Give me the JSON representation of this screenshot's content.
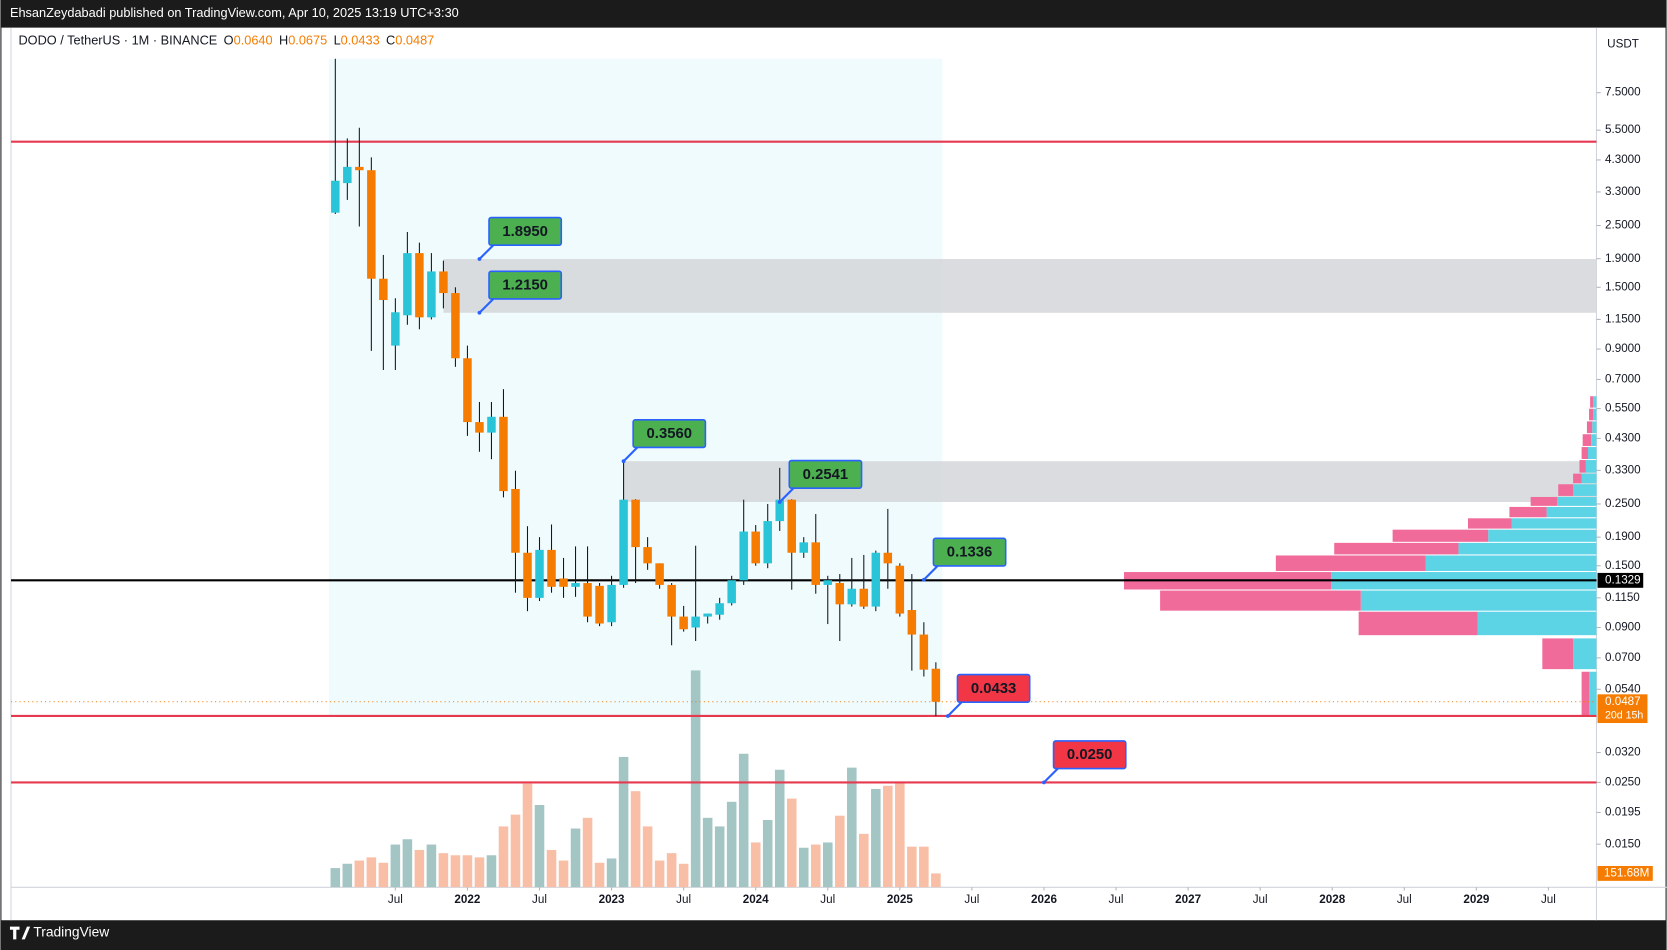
{
  "header": {
    "publish_note": "EhsanZeydabadi published on TradingView.com, Apr 10, 2025 13:19 UTC+3:30"
  },
  "footer": {
    "brand": "TradingView"
  },
  "chart_data": {
    "type": "candlestick",
    "symbol": "DODO / TetherUS · 1M · BINANCE",
    "ohlc_fields": [
      {
        "key": "O",
        "label": "0.0640"
      },
      {
        "key": "H",
        "label": "0.0675"
      },
      {
        "key": "L",
        "label": "0.0433"
      },
      {
        "key": "C",
        "label": "0.0487"
      }
    ],
    "currency": "USDT",
    "x": [
      "2021-02",
      "2021-03",
      "2021-04",
      "2021-05",
      "2021-06",
      "2021-07",
      "2021-08",
      "2021-09",
      "2021-10",
      "2021-11",
      "2021-12",
      "2022-01",
      "2022-02",
      "2022-03",
      "2022-04",
      "2022-05",
      "2022-06",
      "2022-07",
      "2022-08",
      "2022-09",
      "2022-10",
      "2022-11",
      "2022-12",
      "2023-01",
      "2023-02",
      "2023-03",
      "2023-04",
      "2023-05",
      "2023-06",
      "2023-07",
      "2023-08",
      "2023-09",
      "2023-10",
      "2023-11",
      "2023-12",
      "2024-01",
      "2024-02",
      "2024-03",
      "2024-04",
      "2024-05",
      "2024-06",
      "2024-07",
      "2024-08",
      "2024-09",
      "2024-10",
      "2024-11",
      "2024-12",
      "2025-01",
      "2025-02",
      "2025-03",
      "2025-04"
    ],
    "open": [
      2.78,
      3.55,
      4.06,
      3.95,
      1.61,
      0.926,
      1.19,
      1.99,
      1.17,
      1.71,
      1.43,
      0.834,
      0.492,
      0.451,
      0.514,
      0.283,
      0.167,
      0.115,
      0.171,
      0.135,
      0.126,
      0.13,
      0.127,
      0.094,
      0.128,
      0.259,
      0.175,
      0.153,
      0.128,
      0.0985,
      0.09,
      0.0985,
      0.1,
      0.11,
      0.133,
      0.199,
      0.153,
      0.217,
      0.259,
      0.167,
      0.182,
      0.128,
      0.13,
      0.109,
      0.124,
      0.107,
      0.167,
      0.15,
      0.104,
      0.0849,
      0.064
    ],
    "high": [
      9.93,
      5.14,
      5.61,
      4.39,
      1.96,
      1.37,
      2.37,
      2.17,
      1.99,
      1.87,
      1.5,
      0.926,
      0.581,
      0.581,
      0.646,
      0.329,
      0.208,
      0.19,
      0.211,
      0.16,
      0.176,
      0.176,
      0.13,
      0.138,
      0.356,
      0.26,
      0.19,
      0.153,
      0.13,
      0.1076,
      0.177,
      0.101,
      0.115,
      0.138,
      0.259,
      0.21,
      0.25,
      0.337,
      0.26,
      0.19,
      0.23,
      0.138,
      0.14,
      0.16,
      0.164,
      0.17,
      0.24,
      0.153,
      0.14,
      0.094,
      0.0675
    ],
    "low": [
      2.75,
      3.09,
      2.48,
      0.887,
      0.757,
      0.757,
      1.1,
      1.06,
      1.15,
      1.26,
      0.777,
      0.439,
      0.385,
      0.362,
      0.264,
      0.12,
      0.103,
      0.112,
      0.12,
      0.115,
      0.116,
      0.094,
      0.091,
      0.091,
      0.125,
      0.13,
      0.145,
      0.124,
      0.0777,
      0.087,
      0.0805,
      0.093,
      0.096,
      0.108,
      0.128,
      0.15,
      0.147,
      0.2,
      0.123,
      0.16,
      0.119,
      0.0926,
      0.0805,
      0.107,
      0.105,
      0.103,
      0.124,
      0.0985,
      0.063,
      0.06,
      0.0433
    ],
    "close": [
      3.62,
      4.06,
      3.95,
      1.61,
      1.35,
      1.22,
      1.99,
      1.17,
      1.71,
      1.43,
      0.834,
      0.492,
      0.451,
      0.514,
      0.278,
      0.167,
      0.115,
      0.171,
      0.126,
      0.126,
      0.13,
      0.0985,
      0.093,
      0.128,
      0.259,
      0.175,
      0.153,
      0.128,
      0.0985,
      0.0887,
      0.0985,
      0.101,
      0.11,
      0.133,
      0.199,
      0.153,
      0.217,
      0.259,
      0.167,
      0.182,
      0.128,
      0.133,
      0.109,
      0.124,
      0.107,
      0.167,
      0.153,
      0.101,
      0.0849,
      0.0635,
      0.0487
    ],
    "up_color": "#29c4d8",
    "down_color": "#f57c00",
    "volume": {
      "values": [
        210,
        257,
        292,
        327,
        268,
        467,
        525,
        408,
        467,
        373,
        350,
        350,
        327,
        350,
        665,
        794,
        1132,
        899,
        408,
        292,
        642,
        759,
        268,
        315,
        1424,
        1050,
        665,
        292,
        373,
        257,
        2369,
        759,
        665,
        934,
        1459,
        490,
        735,
        1284,
        969,
        432,
        467,
        490,
        782,
        1307,
        584,
        1074,
        1109,
        1144,
        444,
        444,
        151.68
      ],
      "last_label": "151.68M",
      "up_color": "#a3c6c5",
      "down_color": "#f8bea6"
    },
    "log_scale": true,
    "ylim": [
      0.0105,
      10.4
    ],
    "yticks": [
      {
        "value": 7.5,
        "label": "7.5000"
      },
      {
        "value": 5.5,
        "label": "5.5000"
      },
      {
        "value": 4.3,
        "label": "4.3000"
      },
      {
        "value": 3.3,
        "label": "3.3000"
      },
      {
        "value": 2.5,
        "label": "2.5000"
      },
      {
        "value": 1.9,
        "label": "1.9000"
      },
      {
        "value": 1.5,
        "label": "1.5000"
      },
      {
        "value": 1.15,
        "label": "1.1500"
      },
      {
        "value": 0.9,
        "label": "0.9000"
      },
      {
        "value": 0.7,
        "label": "0.7000"
      },
      {
        "value": 0.55,
        "label": "0.5500"
      },
      {
        "value": 0.43,
        "label": "0.4300"
      },
      {
        "value": 0.33,
        "label": "0.3300"
      },
      {
        "value": 0.25,
        "label": "0.2500"
      },
      {
        "value": 0.19,
        "label": "0.1900"
      },
      {
        "value": 0.15,
        "label": "0.1500"
      },
      {
        "value": 0.115,
        "label": "0.1150"
      },
      {
        "value": 0.09,
        "label": "0.0900"
      },
      {
        "value": 0.07,
        "label": "0.0700"
      },
      {
        "value": 0.054,
        "label": "0.0540"
      },
      {
        "value": 0.032,
        "label": "0.0320"
      },
      {
        "value": 0.025,
        "label": "0.0250"
      },
      {
        "value": 0.0195,
        "label": "0.0195"
      },
      {
        "value": 0.015,
        "label": "0.0150"
      }
    ],
    "xlim": [
      "2018-11",
      "2029-11"
    ],
    "xticks": [
      {
        "value": "2021-07",
        "label": "Jul"
      },
      {
        "value": "2022-01",
        "label": "2022"
      },
      {
        "value": "2022-07",
        "label": "Jul"
      },
      {
        "value": "2023-01",
        "label": "2023"
      },
      {
        "value": "2023-07",
        "label": "Jul"
      },
      {
        "value": "2024-01",
        "label": "2024"
      },
      {
        "value": "2024-07",
        "label": "Jul"
      },
      {
        "value": "2025-01",
        "label": "2025"
      },
      {
        "value": "2025-07",
        "label": "Jul"
      },
      {
        "value": "2026-01",
        "label": "2026"
      },
      {
        "value": "2026-07",
        "label": "Jul"
      },
      {
        "value": "2027-01",
        "label": "2027"
      },
      {
        "value": "2027-07",
        "label": "Jul"
      },
      {
        "value": "2028-01",
        "label": "2028"
      },
      {
        "value": "2028-07",
        "label": "Jul"
      },
      {
        "value": "2029-01",
        "label": "2029"
      },
      {
        "value": "2029-07",
        "label": "Jul"
      }
    ],
    "last_price": {
      "label": "0.0487",
      "countdown": "20d 15h",
      "color": "#f57c00"
    },
    "hlines": [
      {
        "value": 5.0,
        "color": "#e53950"
      },
      {
        "value": 0.0433,
        "color": "#e53950"
      },
      {
        "value": 0.025,
        "color": "#e53950"
      },
      {
        "value": 0.1329,
        "color": "#000000",
        "label": "0.1329"
      }
    ],
    "zones": [
      {
        "from": "2021-11",
        "low": 1.215,
        "high": 1.895,
        "color": "#d6d8dc"
      },
      {
        "from": "2023-02",
        "low": 0.2541,
        "high": 0.356,
        "color": "#d6d8dc"
      }
    ],
    "callouts": [
      {
        "x": "2022-02",
        "value": 1.895,
        "label": "1.8950",
        "color": "#4caf50"
      },
      {
        "x": "2022-02",
        "value": 1.215,
        "label": "1.2150",
        "color": "#4caf50"
      },
      {
        "x": "2023-02",
        "value": 0.356,
        "label": "0.3560",
        "color": "#4caf50"
      },
      {
        "x": "2024-03",
        "value": 0.2541,
        "label": "0.2541",
        "color": "#4caf50"
      },
      {
        "x": "2025-03",
        "value": 0.1336,
        "label": "0.1336",
        "color": "#4caf50"
      },
      {
        "x": "2025-05",
        "value": 0.0433,
        "label": "0.0433",
        "color": "#f23645"
      },
      {
        "x": "2026-01",
        "value": 0.025,
        "label": "0.0250",
        "color": "#f23645"
      }
    ],
    "volume_profile": {
      "up_color": "#5dd3e6",
      "down_color": "#f06a9a",
      "rows": [
        {
          "low": 0.0432,
          "high": 0.0627,
          "up": 175,
          "down": 175
        },
        {
          "low": 0.0635,
          "high": 0.0826,
          "up": 550,
          "down": 725
        },
        {
          "low": 0.0841,
          "high": 0.103,
          "up": 2800,
          "down": 2800
        },
        {
          "low": 0.103,
          "high": 0.1227,
          "up": 5550,
          "down": 4725
        },
        {
          "low": 0.1227,
          "high": 0.143,
          "up": 6250,
          "down": 4875
        },
        {
          "low": 0.143,
          "high": 0.164,
          "up": 4025,
          "down": 3525
        },
        {
          "low": 0.164,
          "high": 0.182,
          "up": 3250,
          "down": 2925
        },
        {
          "low": 0.182,
          "high": 0.203,
          "up": 2550,
          "down": 2250
        },
        {
          "low": 0.203,
          "high": 0.223,
          "up": 2000,
          "down": 1025
        },
        {
          "low": 0.223,
          "high": 0.245,
          "up": 1175,
          "down": 875
        },
        {
          "low": 0.245,
          "high": 0.266,
          "up": 925,
          "down": 625
        },
        {
          "low": 0.266,
          "high": 0.2955,
          "up": 550,
          "down": 350
        },
        {
          "low": 0.2955,
          "high": 0.3226,
          "up": 350,
          "down": 200
        },
        {
          "low": 0.3226,
          "high": 0.361,
          "up": 250,
          "down": 150
        },
        {
          "low": 0.361,
          "high": 0.402,
          "up": 200,
          "down": 150
        },
        {
          "low": 0.402,
          "high": 0.447,
          "up": 125,
          "down": 200
        },
        {
          "low": 0.447,
          "high": 0.497,
          "up": 100,
          "down": 125
        },
        {
          "low": 0.497,
          "high": 0.552,
          "up": 75,
          "down": 100
        },
        {
          "low": 0.552,
          "high": 0.612,
          "up": 75,
          "down": 75
        }
      ]
    }
  }
}
